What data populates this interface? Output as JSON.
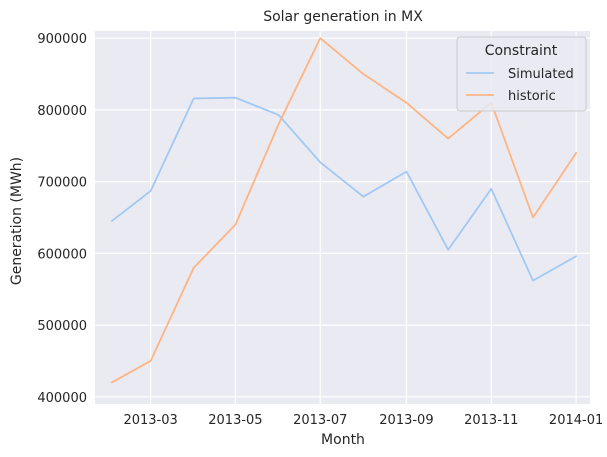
{
  "chart_data": {
    "type": "line",
    "title": "Solar generation in MX",
    "xlabel": "Month",
    "ylabel": "Generation (MWh)",
    "x": [
      "2013-02-01",
      "2013-03-01",
      "2013-04-01",
      "2013-05-01",
      "2013-06-01",
      "2013-07-01",
      "2013-08-01",
      "2013-09-01",
      "2013-10-01",
      "2013-11-01",
      "2013-12-01",
      "2014-01-01"
    ],
    "xticks": [
      "2013-03",
      "2013-05",
      "2013-07",
      "2013-09",
      "2013-11",
      "2014-01"
    ],
    "xlim": [
      "2013-01-20",
      "2014-01-11"
    ],
    "yticks": [
      400000,
      500000,
      600000,
      700000,
      800000,
      900000
    ],
    "ylim": [
      390000,
      910000
    ],
    "grid": true,
    "legend": {
      "title": "Constraint",
      "position": "top-right"
    },
    "series": [
      {
        "name": "Simulated",
        "color": "#a1c9f4",
        "values": [
          645000,
          687000,
          816000,
          817000,
          793000,
          727000,
          679000,
          714000,
          605000,
          690000,
          562000,
          596000
        ]
      },
      {
        "name": "historic",
        "color": "#ffb482",
        "values": [
          420000,
          450000,
          580000,
          640000,
          780000,
          900000,
          850000,
          810000,
          760000,
          810000,
          650000,
          740000
        ]
      }
    ],
    "colors": {
      "plot_background": "#eaeaf2",
      "grid": "#ffffff",
      "legend_background": "#eaeaf2",
      "legend_border": "#cccccc"
    }
  }
}
